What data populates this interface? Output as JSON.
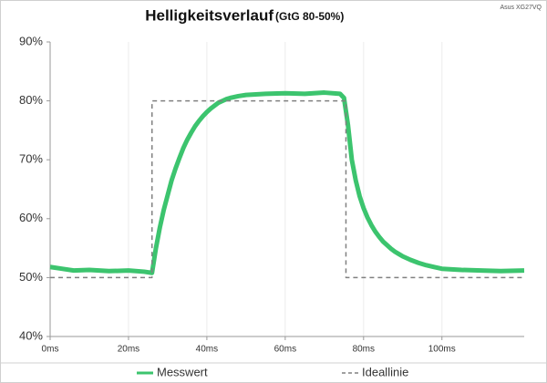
{
  "chart_data": {
    "type": "line",
    "title": "Helligkeitsverlauf",
    "subtitle": "(GtG 80-50%)",
    "annotation": "Asus XG27VQ",
    "xlim": [
      0,
      121
    ],
    "ylim": [
      40,
      90
    ],
    "xticks": [
      {
        "value": 0,
        "label": "0ms"
      },
      {
        "value": 20,
        "label": "20ms"
      },
      {
        "value": 40,
        "label": "40ms"
      },
      {
        "value": 60,
        "label": "60ms"
      },
      {
        "value": 80,
        "label": "80ms"
      },
      {
        "value": 100,
        "label": "100ms"
      }
    ],
    "yticks": [
      {
        "value": 40,
        "label": "40%"
      },
      {
        "value": 50,
        "label": "50%"
      },
      {
        "value": 60,
        "label": "60%"
      },
      {
        "value": 70,
        "label": "70%"
      },
      {
        "value": 80,
        "label": "80%"
      },
      {
        "value": 90,
        "label": "90%"
      }
    ],
    "grid": true,
    "legend": "bottom",
    "series": [
      {
        "name": "Messwert",
        "color": "#3cc46e",
        "dash": false,
        "x": [
          0,
          3,
          6,
          10,
          15,
          20,
          24,
          26,
          27,
          28,
          29,
          30,
          31,
          32,
          33,
          34,
          35,
          36,
          37,
          38,
          39,
          40,
          41,
          42,
          43,
          44,
          45,
          46,
          48,
          50,
          55,
          60,
          65,
          70,
          74,
          75,
          76,
          77,
          78,
          79,
          80,
          81,
          82,
          83,
          84,
          85,
          86,
          87,
          88,
          89,
          90,
          92,
          94,
          96,
          98,
          100,
          105,
          110,
          115,
          121
        ],
        "values": [
          51.8,
          51.5,
          51.2,
          51.3,
          51.1,
          51.2,
          51.0,
          50.8,
          55,
          58.5,
          61.5,
          64,
          66.5,
          68.5,
          70.3,
          72,
          73.4,
          74.6,
          75.7,
          76.6,
          77.4,
          78.1,
          78.7,
          79.2,
          79.7,
          80,
          80.3,
          80.5,
          80.8,
          81,
          81.2,
          81.3,
          81.2,
          81.4,
          81.2,
          80.5,
          76,
          70,
          66.5,
          63.8,
          61.8,
          60.2,
          58.9,
          57.8,
          56.9,
          56.1,
          55.5,
          54.9,
          54.4,
          54,
          53.6,
          53,
          52.5,
          52.1,
          51.8,
          51.5,
          51.3,
          51.2,
          51.1,
          51.2
        ]
      },
      {
        "name": "Ideallinie",
        "color": "#808080",
        "dash": true,
        "x": [
          0,
          26,
          26,
          75.5,
          75.5,
          121
        ],
        "values": [
          50,
          50,
          80,
          80,
          50,
          50
        ]
      }
    ]
  }
}
